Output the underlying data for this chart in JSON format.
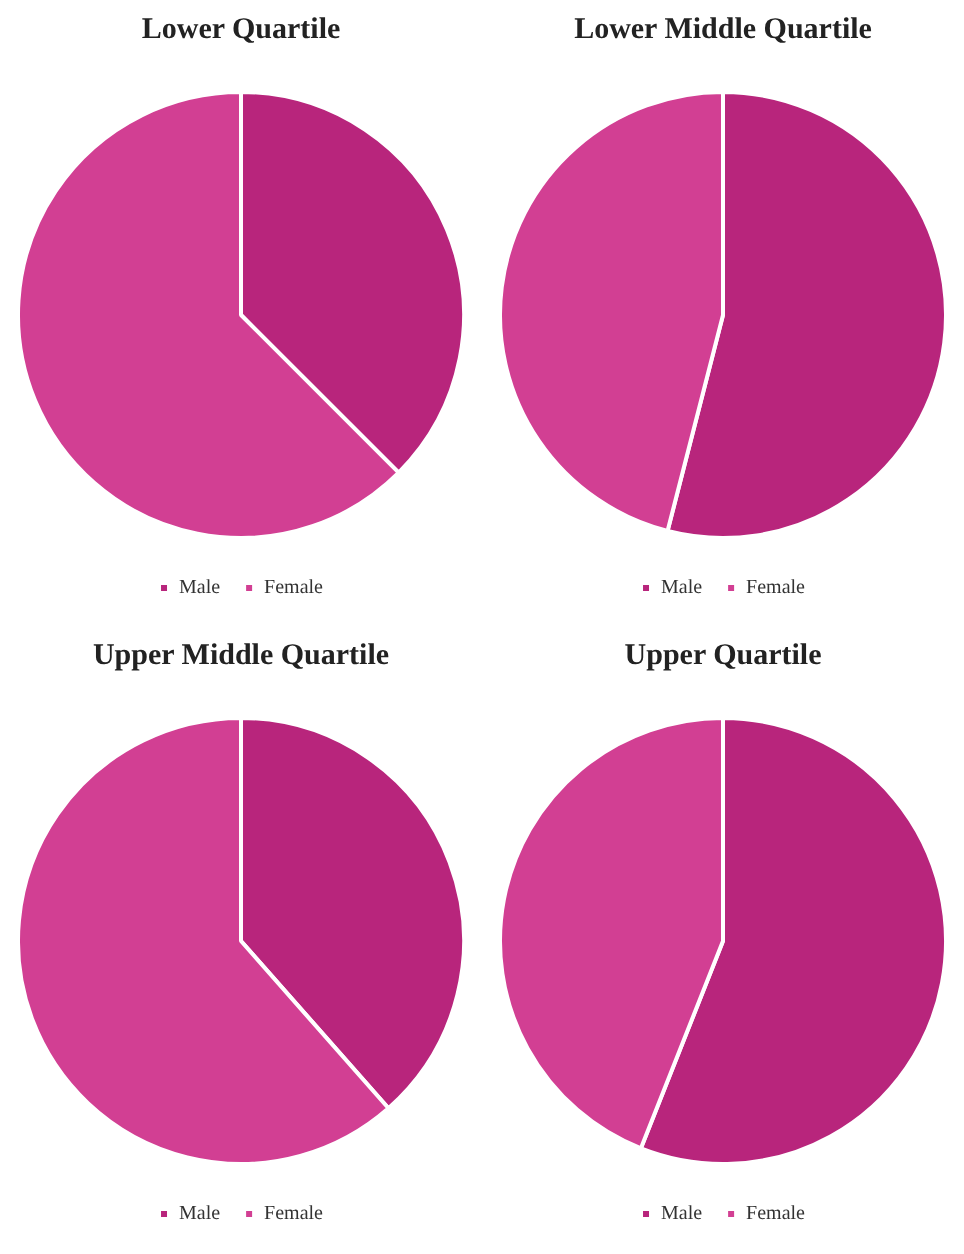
{
  "chart_data": [
    {
      "type": "pie",
      "title": "Lower Quartile",
      "categories": [
        "Male",
        "Female"
      ],
      "values": [
        37.5,
        62.5
      ],
      "colors": [
        "#b8257c",
        "#d23f93"
      ],
      "legend": "bottom"
    },
    {
      "type": "pie",
      "title": "Lower Middle Quartile",
      "categories": [
        "Male",
        "Female"
      ],
      "values": [
        54,
        46
      ],
      "colors": [
        "#b8257c",
        "#d23f93"
      ],
      "legend": "bottom"
    },
    {
      "type": "pie",
      "title": "Upper Middle Quartile",
      "categories": [
        "Male",
        "Female"
      ],
      "values": [
        38.5,
        61.5
      ],
      "colors": [
        "#b8257c",
        "#d23f93"
      ],
      "legend": "bottom"
    },
    {
      "type": "pie",
      "title": "Upper Quartile",
      "categories": [
        "Male",
        "Female"
      ],
      "values": [
        56,
        44
      ],
      "colors": [
        "#b8257c",
        "#d23f93"
      ],
      "legend": "bottom"
    }
  ]
}
